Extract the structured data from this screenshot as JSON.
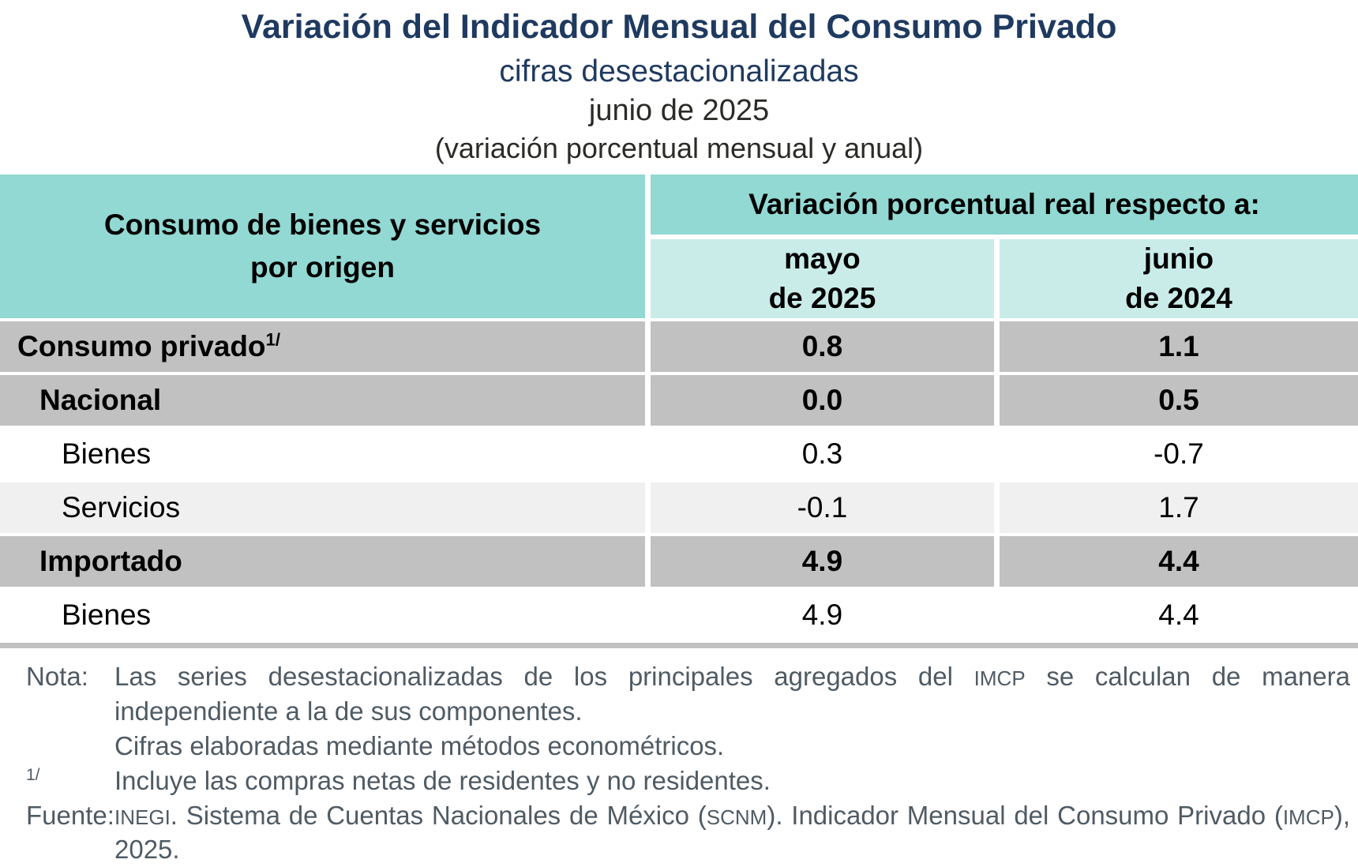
{
  "header": {
    "title": "Variación del Indicador Mensual del Consumo Privado",
    "subtitle": "cifras desestacionalizadas",
    "period": "junio de 2025",
    "measure_note": "(variación porcentual mensual y anual)"
  },
  "table": {
    "stub_header": "Consumo de bienes y servicios\npor origen",
    "group_header": "Variación porcentual real respecto a:",
    "col_headers": [
      "mayo\nde 2025",
      "junio\nde 2024"
    ],
    "rows": [
      {
        "label": "Consumo privado",
        "footnote": "1/",
        "values": [
          "0.8",
          "1.1"
        ]
      },
      {
        "label": "Nacional",
        "values": [
          "0.0",
          "0.5"
        ]
      },
      {
        "label": "Bienes",
        "values": [
          "0.3",
          "-0.7"
        ]
      },
      {
        "label": "Servicios",
        "values": [
          "-0.1",
          "1.7"
        ]
      },
      {
        "label": "Importado",
        "values": [
          "4.9",
          "4.4"
        ]
      },
      {
        "label": "Bienes",
        "values": [
          "4.9",
          "4.4"
        ]
      }
    ]
  },
  "notes": {
    "nota_label": "Nota:",
    "nota_segments": [
      {
        "text": "Las series desestacionalizadas de los principales agregados del "
      },
      {
        "text": "IMCP",
        "small": true
      },
      {
        "text": " se calculan de manera independiente a la de sus componentes."
      }
    ],
    "methods_line": "Cifras elaboradas mediante métodos econométricos.",
    "footnote_label": "1/",
    "footnote_text": "Incluye las compras netas de residentes y no residentes.",
    "source_label": "Fuente:",
    "source_segments": [
      {
        "text": "INEGI",
        "small": true
      },
      {
        "text": ". Sistema de Cuentas Nacionales de México ("
      },
      {
        "text": "SCNM",
        "small": true
      },
      {
        "text": "). Indicador Mensual del Consumo Privado ("
      },
      {
        "text": "IMCP",
        "small": true
      },
      {
        "text": "), 2025."
      }
    ]
  },
  "colors": {
    "header_teal": "#92d8d3",
    "subheader_teal": "#c9ece9",
    "band_gray": "#c1c1c1",
    "band_lightgray": "#f0f0f0",
    "title_navy": "#1f3a60",
    "notes_gray": "#4f5b64"
  },
  "chart_data": {
    "type": "table",
    "title": "Variación del Indicador Mensual del Consumo Privado",
    "subtitle": "cifras desestacionalizadas",
    "period": "junio de 2025",
    "units": "variación porcentual real (mensual y anual)",
    "columns": [
      "mayo de 2025",
      "junio de 2024"
    ],
    "rows": [
      {
        "label": "Consumo privado",
        "footnote": "1/",
        "level": 1,
        "values": [
          0.8,
          1.1
        ]
      },
      {
        "label": "Nacional",
        "level": 2,
        "values": [
          0.0,
          0.5
        ]
      },
      {
        "label": "Bienes",
        "level": 3,
        "values": [
          0.3,
          -0.7
        ]
      },
      {
        "label": "Servicios",
        "level": 3,
        "values": [
          -0.1,
          1.7
        ]
      },
      {
        "label": "Importado",
        "level": 2,
        "values": [
          4.9,
          4.4
        ]
      },
      {
        "label": "Bienes",
        "level": 3,
        "values": [
          4.9,
          4.4
        ]
      }
    ]
  }
}
